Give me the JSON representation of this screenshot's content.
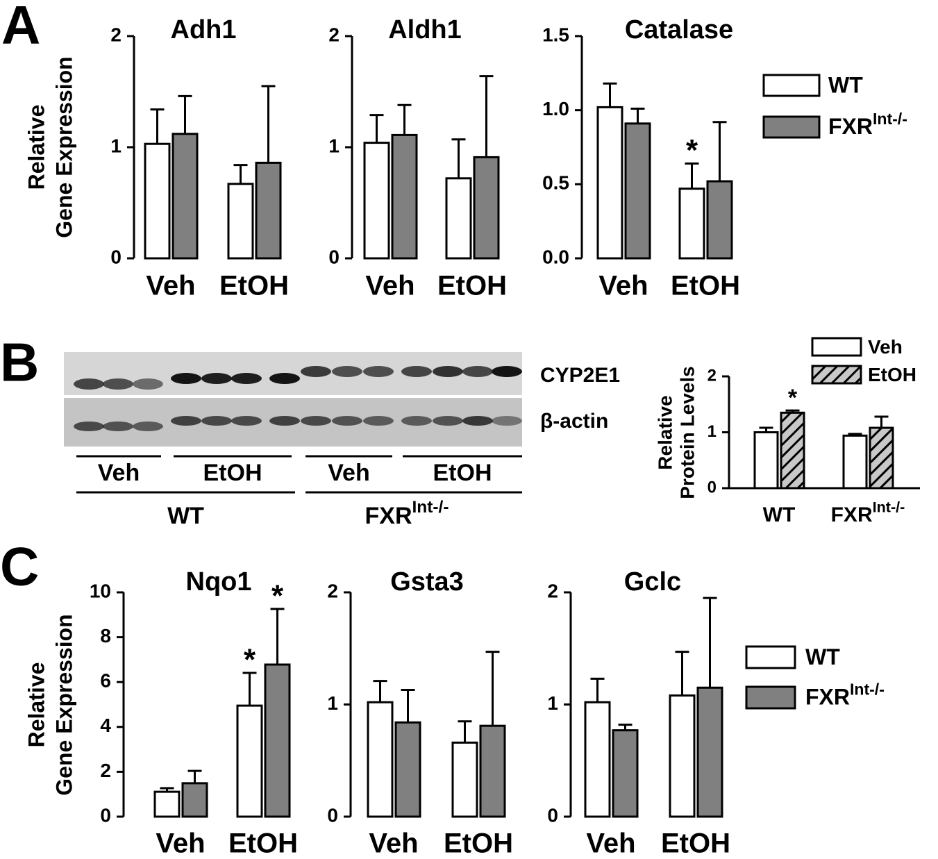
{
  "panel_labels": [
    "A",
    "B",
    "C"
  ],
  "chart_data": [
    {
      "type": "bar",
      "title": "Adh1",
      "ylabel": [
        "Relative",
        "Gene Expression"
      ],
      "categories": [
        "Veh",
        "EtOH"
      ],
      "ylim": [
        0,
        2
      ],
      "yticks": [
        0,
        1,
        2
      ],
      "series": [
        {
          "color": "#ffffff",
          "values": [
            1.03,
            0.67
          ],
          "errors": [
            0.31,
            0.17
          ]
        },
        {
          "color": "#808080",
          "values": [
            1.12,
            0.86
          ],
          "errors": [
            0.34,
            0.69
          ]
        }
      ]
    },
    {
      "type": "bar",
      "title": "Aldh1",
      "categories": [
        "Veh",
        "EtOH"
      ],
      "ylim": [
        0,
        2
      ],
      "yticks": [
        0,
        1,
        2
      ],
      "series": [
        {
          "color": "#ffffff",
          "values": [
            1.04,
            0.72
          ],
          "errors": [
            0.25,
            0.35
          ]
        },
        {
          "color": "#808080",
          "values": [
            1.11,
            0.91
          ],
          "errors": [
            0.27,
            0.73
          ]
        }
      ]
    },
    {
      "type": "bar",
      "title": "Catalase",
      "categories": [
        "Veh",
        "EtOH"
      ],
      "ylim": [
        0,
        1.5
      ],
      "yticks": [
        {
          "value": 0,
          "label": "0.0"
        },
        0.5,
        {
          "value": 1,
          "label": "1.0"
        },
        1.5
      ],
      "legend": [
        {
          "name": "WT"
        },
        {
          "name": "FXR",
          "name_sup": "Int-/-"
        }
      ],
      "series": [
        {
          "color": "#ffffff",
          "values": [
            1.02,
            0.47
          ],
          "errors": [
            0.16,
            0.17
          ],
          "labels": [
            null,
            "*"
          ]
        },
        {
          "color": "#808080",
          "values": [
            0.91,
            0.52
          ],
          "errors": [
            0.1,
            0.4
          ]
        }
      ]
    },
    {
      "type": "bar",
      "ylabel": [
        "Relative",
        "Protein Levels"
      ],
      "categories": [
        "WT",
        "FXR"
      ],
      "category_sups": [
        null,
        "Int-/-"
      ],
      "ylim": [
        0,
        2
      ],
      "yticks": [
        0,
        1,
        2
      ],
      "series": [
        {
          "name": "Veh",
          "color": "#ffffff",
          "values": [
            1.0,
            0.94
          ],
          "errors": [
            0.08,
            0.03
          ]
        },
        {
          "name": "EtOH",
          "color": "#c8c8c8",
          "hatch": true,
          "values": [
            1.35,
            1.08
          ],
          "errors": [
            0.04,
            0.2
          ],
          "labels": [
            "*",
            null
          ]
        }
      ]
    },
    {
      "type": "bar",
      "title": "Nqo1",
      "ylabel": [
        "Relative",
        "Gene Expression"
      ],
      "categories": [
        "Veh",
        "EtOH"
      ],
      "ylim": [
        0,
        10
      ],
      "yticks": [
        0,
        2,
        4,
        6,
        8,
        10
      ],
      "series": [
        {
          "color": "#ffffff",
          "values": [
            1.11,
            4.95
          ],
          "errors": [
            0.16,
            1.46
          ],
          "labels": [
            null,
            "*"
          ]
        },
        {
          "color": "#808080",
          "values": [
            1.49,
            6.78
          ],
          "errors": [
            0.55,
            2.48
          ],
          "labels": [
            null,
            "*"
          ]
        }
      ]
    },
    {
      "type": "bar",
      "title": "Gsta3",
      "categories": [
        "Veh",
        "EtOH"
      ],
      "ylim": [
        0,
        2
      ],
      "yticks": [
        0,
        1,
        2
      ],
      "series": [
        {
          "color": "#ffffff",
          "values": [
            1.02,
            0.66
          ],
          "errors": [
            0.19,
            0.19
          ]
        },
        {
          "color": "#808080",
          "values": [
            0.84,
            0.81
          ],
          "errors": [
            0.29,
            0.66
          ]
        }
      ]
    },
    {
      "type": "bar",
      "title": "Gclc",
      "categories": [
        "Veh",
        "EtOH"
      ],
      "ylim": [
        0,
        2
      ],
      "yticks": [
        0,
        1,
        2
      ],
      "legend": [
        {
          "name": "WT"
        },
        {
          "name": "FXR",
          "name_sup": "Int-/-"
        }
      ],
      "series": [
        {
          "color": "#ffffff",
          "values": [
            1.02,
            1.08
          ],
          "errors": [
            0.21,
            0.39
          ]
        },
        {
          "color": "#808080",
          "values": [
            0.77,
            1.15
          ],
          "errors": [
            0.05,
            0.8
          ]
        }
      ]
    }
  ],
  "blot": {
    "bands": [
      "CYP2E1",
      "β-actin"
    ],
    "groups": [
      "Veh",
      "EtOH",
      "Veh",
      "EtOH"
    ],
    "genotypes": [
      {
        "name": "WT"
      },
      {
        "name": "FXR",
        "name_sup": "Int-/-"
      }
    ]
  }
}
